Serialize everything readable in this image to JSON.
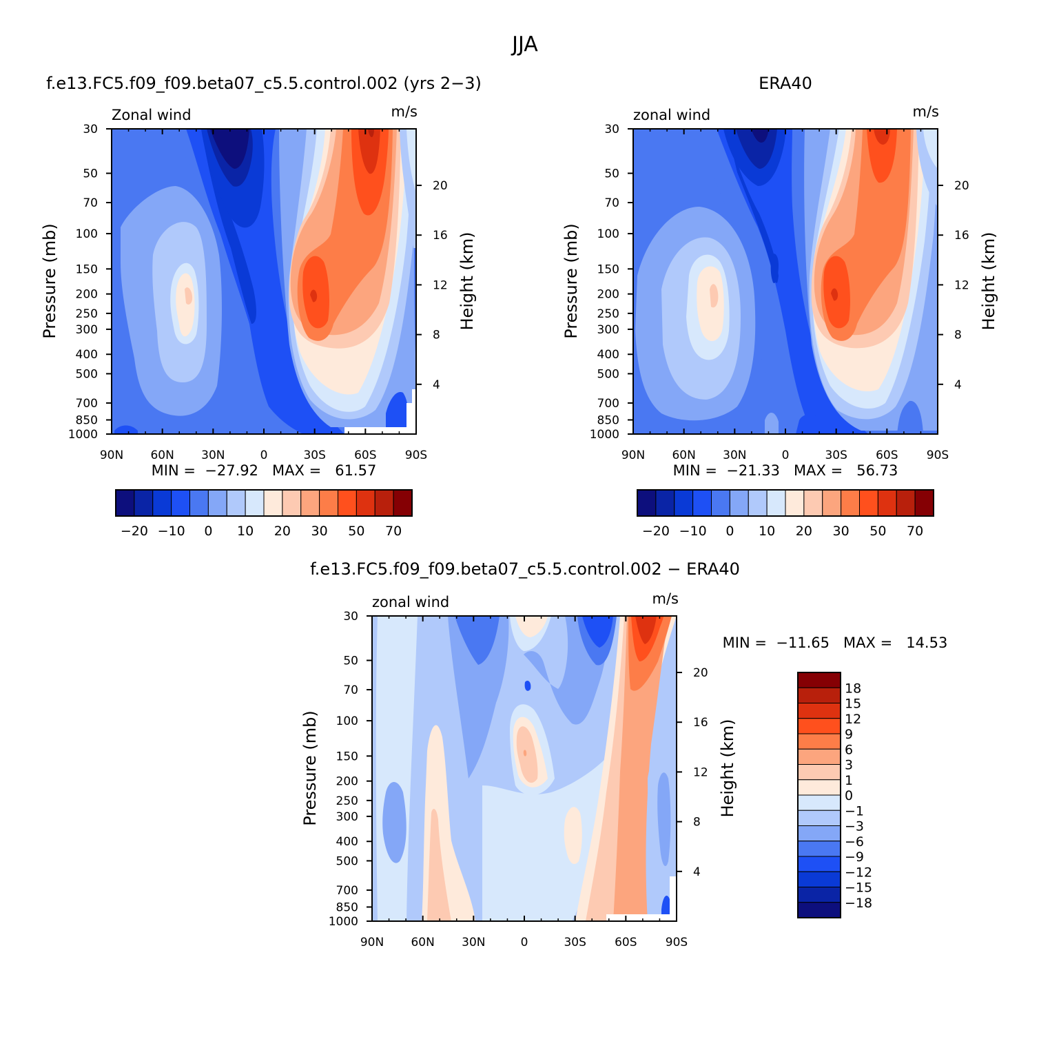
{
  "title": "JJA",
  "chart_data": [
    {
      "type": "heatmap",
      "title": "f.e13.FC5.f09_f09.beta07_c5.5.control.002 (yrs 2−3)",
      "variable_label": "Zonal wind",
      "units_label": "m/s",
      "ylabel": "Pressure (mb)",
      "y2label": "Height (km)",
      "x_ticks": [
        "90N",
        "60N",
        "30N",
        "0",
        "30S",
        "60S",
        "90S"
      ],
      "y_ticks": [
        30,
        50,
        70,
        100,
        150,
        200,
        250,
        300,
        400,
        500,
        700,
        850,
        1000
      ],
      "y2_ticks": [
        20,
        16,
        12,
        8,
        4
      ],
      "stats_text": "MIN =  −27.92   MAX =   61.57",
      "min": -27.92,
      "max": 61.57,
      "colorbar": {
        "orientation": "horizontal",
        "levels": [
          -25,
          -20,
          -15,
          -10,
          -5,
          0,
          5,
          10,
          15,
          20,
          25,
          30,
          40,
          50,
          60,
          70
        ],
        "labels": [
          "−20",
          "−10",
          "0",
          "10",
          "20",
          "30",
          "50",
          "70"
        ]
      },
      "features": [
        {
          "kind": "easterly_core",
          "lat": -18,
          "pressure": 30,
          "value": -25
        },
        {
          "kind": "westerly_jet",
          "lat": 46,
          "pressure": 200,
          "value": 25
        },
        {
          "kind": "westerly_jet",
          "lat": -30,
          "pressure": 200,
          "value": 55
        },
        {
          "kind": "polar_night_jet",
          "lat": -60,
          "pressure": 30,
          "value": 60
        }
      ]
    },
    {
      "type": "heatmap",
      "title": "ERA40",
      "variable_label": "zonal wind",
      "units_label": "m/s",
      "ylabel": "Pressure (mb)",
      "y2label": "Height (km)",
      "x_ticks": [
        "90N",
        "60N",
        "30N",
        "0",
        "30S",
        "60S",
        "90S"
      ],
      "y_ticks": [
        30,
        50,
        70,
        100,
        150,
        200,
        250,
        300,
        400,
        500,
        700,
        850,
        1000
      ],
      "y2_ticks": [
        20,
        16,
        12,
        8,
        4
      ],
      "stats_text": "MIN =  −21.33   MAX =   56.73",
      "min": -21.33,
      "max": 56.73,
      "colorbar": {
        "orientation": "horizontal",
        "levels": [
          -25,
          -20,
          -15,
          -10,
          -5,
          0,
          5,
          10,
          15,
          20,
          25,
          30,
          40,
          50,
          60,
          70
        ],
        "labels": [
          "−20",
          "−10",
          "0",
          "10",
          "20",
          "30",
          "50",
          "70"
        ]
      },
      "features": [
        {
          "kind": "easterly_core",
          "lat": -15,
          "pressure": 30,
          "value": -20
        },
        {
          "kind": "westerly_jet",
          "lat": 42,
          "pressure": 200,
          "value": 25
        },
        {
          "kind": "westerly_jet",
          "lat": -30,
          "pressure": 200,
          "value": 50
        },
        {
          "kind": "polar_night_jet",
          "lat": -60,
          "pressure": 30,
          "value": 55
        }
      ]
    },
    {
      "type": "heatmap",
      "title": "f.e13.FC5.f09_f09.beta07_c5.5.control.002 − ERA40",
      "variable_label": "zonal wind",
      "units_label": "m/s",
      "ylabel": "Pressure (mb)",
      "y2label": "Height (km)",
      "x_ticks": [
        "90N",
        "60N",
        "30N",
        "0",
        "30S",
        "60S",
        "90S"
      ],
      "y_ticks": [
        30,
        50,
        70,
        100,
        150,
        200,
        250,
        300,
        400,
        500,
        700,
        850,
        1000
      ],
      "y2_ticks": [
        20,
        16,
        12,
        8,
        4
      ],
      "stats_text": "MIN =  −11.65   MAX =   14.53",
      "min": -11.65,
      "max": 14.53,
      "colorbar": {
        "orientation": "vertical",
        "levels": [
          -18,
          -15,
          -12,
          -9,
          -6,
          -3,
          -1,
          0,
          1,
          3,
          6,
          9,
          12,
          15,
          18
        ],
        "labels": [
          "18",
          "15",
          "12",
          "9",
          "6",
          "3",
          "1",
          "0",
          "−1",
          "−3",
          "−6",
          "−9",
          "−12",
          "−15",
          "−18"
        ]
      },
      "features": [
        {
          "kind": "negative_bias",
          "lat": 25,
          "pressure": 40,
          "value": -8
        },
        {
          "kind": "negative_bias",
          "lat": -22,
          "pressure": 35,
          "value": -9
        },
        {
          "kind": "positive_bias",
          "lat": 0,
          "pressure": 150,
          "value": 5
        },
        {
          "kind": "positive_bias",
          "lat": -67,
          "pressure": 35,
          "value": 12
        },
        {
          "kind": "positive_bias_column",
          "lat": -58,
          "pressure": 400,
          "value": 4
        }
      ]
    }
  ],
  "colors": {
    "fill_scale": [
      "#0d0f7d",
      "#0a24a6",
      "#0a3ad6",
      "#1e50f5",
      "#4a78f2",
      "#84a7f7",
      "#b0c9fb",
      "#d7e8fc",
      "#feeadb",
      "#fdcab2",
      "#fca57e",
      "#fd7d48",
      "#ff501d",
      "#de3210",
      "#b8200c",
      "#850004"
    ]
  }
}
